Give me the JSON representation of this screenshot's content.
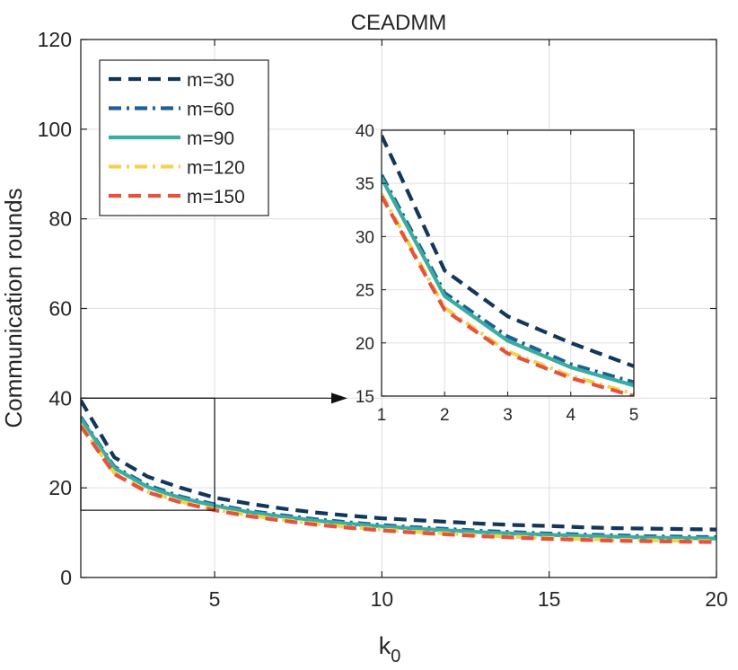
{
  "chart_data": {
    "type": "line",
    "title": "CEADMM",
    "xlabel": "k",
    "xlabel_subscript": "0",
    "ylabel": "Communication rounds",
    "xlim": [
      1,
      20
    ],
    "ylim": [
      0,
      120
    ],
    "x_ticks": [
      "5",
      "10",
      "15",
      "20"
    ],
    "y_ticks": [
      "0",
      "20",
      "40",
      "60",
      "80",
      "100",
      "120"
    ],
    "grid": true,
    "legend_position": "top-left",
    "x": [
      1,
      2,
      3,
      4,
      5,
      6,
      7,
      8,
      9,
      10,
      11,
      12,
      13,
      14,
      15,
      16,
      17,
      18,
      19,
      20
    ],
    "series": [
      {
        "name": "m=30",
        "color": "#13375a",
        "style": "dashed",
        "values": [
          39.5,
          26.8,
          22.5,
          20.0,
          17.8,
          16.5,
          15.4,
          14.5,
          13.8,
          13.2,
          12.8,
          12.4,
          12.0,
          11.7,
          11.5,
          11.2,
          11.0,
          10.9,
          10.8,
          10.7
        ]
      },
      {
        "name": "m=60",
        "color": "#1f5f96",
        "style": "dashdot",
        "values": [
          35.8,
          24.7,
          20.6,
          18.0,
          16.3,
          14.9,
          13.9,
          13.0,
          12.3,
          11.7,
          11.2,
          10.8,
          10.4,
          10.1,
          9.8,
          9.6,
          9.4,
          9.2,
          9.1,
          9.0
        ]
      },
      {
        "name": "m=90",
        "color": "#3aada0",
        "style": "solid",
        "values": [
          35.5,
          24.4,
          20.2,
          17.7,
          16.0,
          14.6,
          13.6,
          12.7,
          12.0,
          11.4,
          10.9,
          10.5,
          10.1,
          9.8,
          9.5,
          9.3,
          9.1,
          8.9,
          8.8,
          8.7
        ]
      },
      {
        "name": "m=120",
        "color": "#f2d34f",
        "style": "dashdot",
        "values": [
          34.0,
          23.3,
          19.2,
          16.9,
          15.2,
          13.9,
          12.9,
          12.0,
          11.3,
          10.7,
          10.2,
          9.8,
          9.4,
          9.1,
          8.8,
          8.6,
          8.4,
          8.3,
          8.2,
          8.1
        ]
      },
      {
        "name": "m=150",
        "color": "#e5533c",
        "style": "dashed",
        "values": [
          33.8,
          23.1,
          19.0,
          16.7,
          15.0,
          13.7,
          12.7,
          11.8,
          11.1,
          10.5,
          10.0,
          9.6,
          9.2,
          8.9,
          8.6,
          8.4,
          8.2,
          8.1,
          8.0,
          7.9
        ]
      }
    ],
    "inset": {
      "xlim": [
        1,
        5
      ],
      "ylim": [
        15,
        40
      ],
      "x_ticks": [
        "1",
        "2",
        "3",
        "4",
        "5"
      ],
      "y_ticks": [
        "15",
        "20",
        "25",
        "30",
        "35",
        "40"
      ],
      "zoom_box_x": [
        1,
        5
      ],
      "zoom_box_y": [
        15,
        40
      ]
    }
  }
}
